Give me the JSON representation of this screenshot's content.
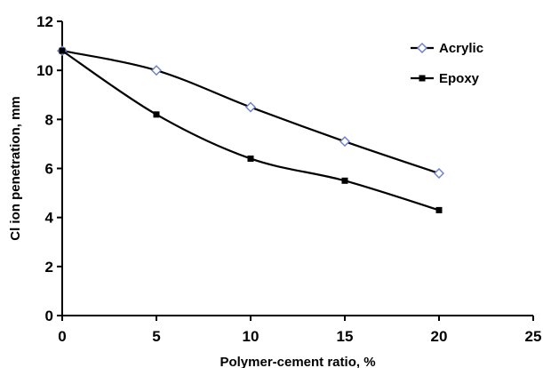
{
  "chart_data": {
    "type": "line",
    "title": "",
    "xlabel": "Polymer-cement ratio, %",
    "ylabel": "Cl ion penetration, mm",
    "xlim": [
      0,
      25
    ],
    "ylim": [
      0,
      12
    ],
    "xticks": [
      "0",
      "5",
      "10",
      "15",
      "20",
      "25"
    ],
    "yticks": [
      "0",
      "2",
      "4",
      "6",
      "8",
      "10",
      "12"
    ],
    "grid": false,
    "legend_position": "top-right",
    "x": [
      0,
      5,
      10,
      15,
      20
    ],
    "series": [
      {
        "name": "Acrylic",
        "values": [
          10.8,
          10.0,
          8.5,
          7.1,
          5.8
        ],
        "marker": "open-diamond",
        "marker_color": "#6b7ec8",
        "line_color": "#000000"
      },
      {
        "name": "Epoxy",
        "values": [
          10.8,
          8.2,
          6.4,
          5.5,
          4.3
        ],
        "marker": "filled-square",
        "marker_color": "#000000",
        "line_color": "#000000"
      }
    ]
  }
}
